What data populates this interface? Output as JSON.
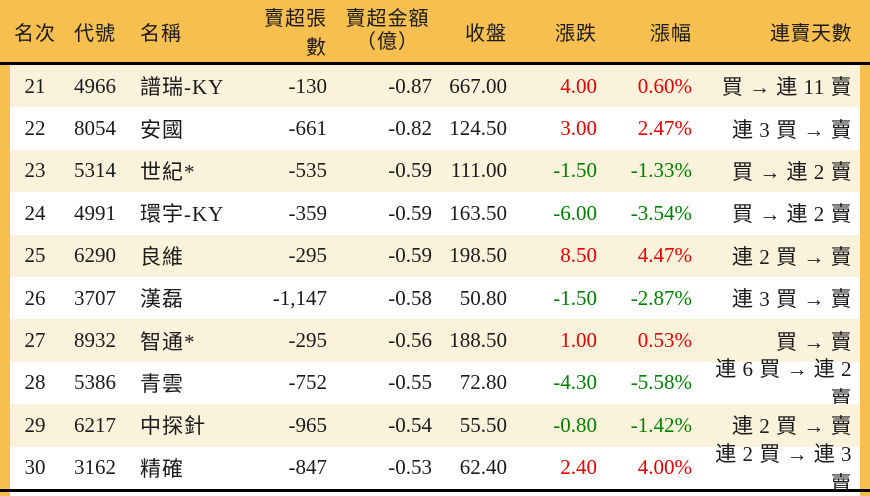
{
  "chart_data": {
    "type": "table",
    "columns": [
      {
        "key": "rank",
        "label": "名次"
      },
      {
        "key": "code",
        "label": "代號"
      },
      {
        "key": "name",
        "label": "名稱"
      },
      {
        "key": "sell_volume",
        "label": "賣超張數"
      },
      {
        "key": "sell_amount",
        "label": "賣超金額",
        "label_line2": "（億）"
      },
      {
        "key": "close",
        "label": "收盤"
      },
      {
        "key": "change",
        "label": "漲跌"
      },
      {
        "key": "change_pct",
        "label": "漲幅"
      },
      {
        "key": "streak",
        "label": "連賣天數"
      }
    ],
    "rows": [
      {
        "rank": "21",
        "code": "4966",
        "name": "譜瑞-KY",
        "sell_volume": "-130",
        "sell_amount": "-0.87",
        "close": "667.00",
        "change": "4.00",
        "change_pct": "0.60%",
        "direction": "up",
        "streak": "買 → 連 11 賣"
      },
      {
        "rank": "22",
        "code": "8054",
        "name": "安國",
        "sell_volume": "-661",
        "sell_amount": "-0.82",
        "close": "124.50",
        "change": "3.00",
        "change_pct": "2.47%",
        "direction": "up",
        "streak": "連 3 買 → 賣"
      },
      {
        "rank": "23",
        "code": "5314",
        "name": "世紀*",
        "sell_volume": "-535",
        "sell_amount": "-0.59",
        "close": "111.00",
        "change": "-1.50",
        "change_pct": "-1.33%",
        "direction": "down",
        "streak": "買 → 連 2 賣"
      },
      {
        "rank": "24",
        "code": "4991",
        "name": "環宇-KY",
        "sell_volume": "-359",
        "sell_amount": "-0.59",
        "close": "163.50",
        "change": "-6.00",
        "change_pct": "-3.54%",
        "direction": "down",
        "streak": "買 → 連 2 賣"
      },
      {
        "rank": "25",
        "code": "6290",
        "name": "良維",
        "sell_volume": "-295",
        "sell_amount": "-0.59",
        "close": "198.50",
        "change": "8.50",
        "change_pct": "4.47%",
        "direction": "up",
        "streak": "連 2 買 → 賣"
      },
      {
        "rank": "26",
        "code": "3707",
        "name": "漢磊",
        "sell_volume": "-1,147",
        "sell_amount": "-0.58",
        "close": "50.80",
        "change": "-1.50",
        "change_pct": "-2.87%",
        "direction": "down",
        "streak": "連 3 買 → 賣"
      },
      {
        "rank": "27",
        "code": "8932",
        "name": "智通*",
        "sell_volume": "-295",
        "sell_amount": "-0.56",
        "close": "188.50",
        "change": "1.00",
        "change_pct": "0.53%",
        "direction": "up",
        "streak": "買 → 賣"
      },
      {
        "rank": "28",
        "code": "5386",
        "name": "青雲",
        "sell_volume": "-752",
        "sell_amount": "-0.55",
        "close": "72.80",
        "change": "-4.30",
        "change_pct": "-5.58%",
        "direction": "down",
        "streak": "連 6 買 → 連 2 賣"
      },
      {
        "rank": "29",
        "code": "6217",
        "name": "中探針",
        "sell_volume": "-965",
        "sell_amount": "-0.54",
        "close": "55.50",
        "change": "-0.80",
        "change_pct": "-1.42%",
        "direction": "down",
        "streak": "連 2 買 → 賣"
      },
      {
        "rank": "30",
        "code": "3162",
        "name": "精確",
        "sell_volume": "-847",
        "sell_amount": "-0.53",
        "close": "62.40",
        "change": "2.40",
        "change_pct": "4.00%",
        "direction": "up",
        "streak": "連 2 買 → 連 3 賣"
      }
    ],
    "colors": {
      "header_bg": "#F6BF50",
      "row_odd_bg": "#FBF2DC",
      "row_even_bg": "#FFFFFF",
      "up": "#E60000",
      "down": "#008000",
      "text": "#1B1B1B",
      "separator": "#000000"
    }
  }
}
